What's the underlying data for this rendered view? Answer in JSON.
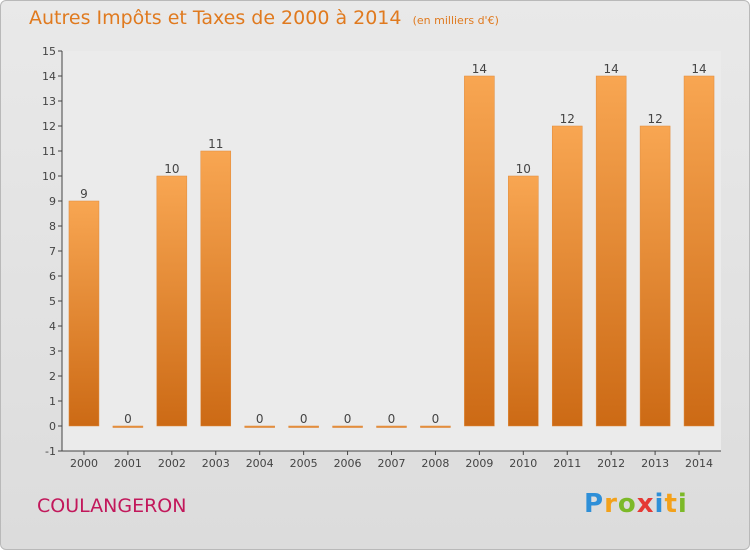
{
  "header": {
    "title": "Autres Impôts et Taxes de 2000 à 2014",
    "subtitle": "(en milliers d'€)"
  },
  "footer": {
    "commune": "COULANGERON",
    "logo_text": "Proxiti"
  },
  "colors": {
    "bar_light": "#f8a652",
    "bar_dark": "#cc6a15",
    "title": "#e07a1f",
    "commune": "#c2185b"
  },
  "chart_data": {
    "type": "bar",
    "title": "Autres Impôts et Taxes de 2000 à 2014",
    "subtitle": "(en milliers d'€)",
    "categories": [
      "2000",
      "2001",
      "2002",
      "2003",
      "2004",
      "2005",
      "2006",
      "2007",
      "2008",
      "2009",
      "2010",
      "2011",
      "2012",
      "2013",
      "2014"
    ],
    "values": [
      9,
      0,
      10,
      11,
      0,
      0,
      0,
      0,
      0,
      14,
      10,
      12,
      14,
      12,
      14
    ],
    "ylim": [
      -1,
      15
    ],
    "yticks": [
      -1,
      0,
      1,
      2,
      3,
      4,
      5,
      6,
      7,
      8,
      9,
      10,
      11,
      12,
      13,
      14,
      15
    ],
    "grid": false,
    "data_labels": true
  }
}
